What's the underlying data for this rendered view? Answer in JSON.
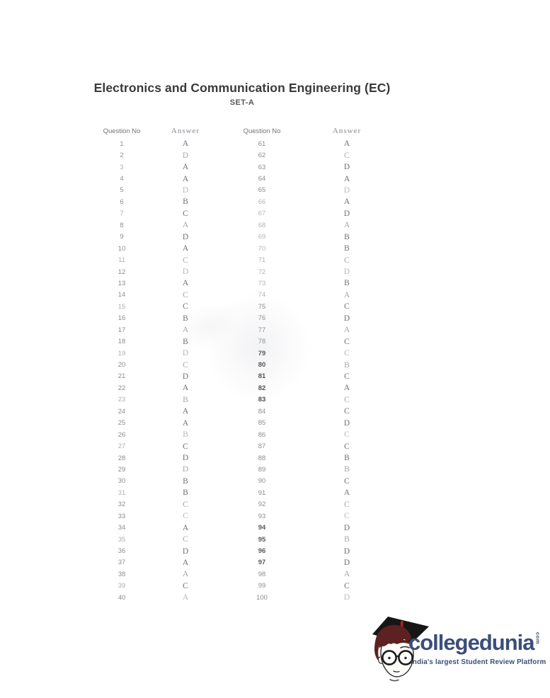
{
  "page": {
    "title": "Electronics and Communication Engineering (EC)",
    "set_label": "SET-A"
  },
  "table": {
    "headers": [
      "Question No",
      "Answer",
      "Question No",
      "Answer"
    ],
    "rows": [
      {
        "q1": "1",
        "a1": "A",
        "q2": "61",
        "a2": "A"
      },
      {
        "q1": "2",
        "a1": "D",
        "q2": "62",
        "a2": "C"
      },
      {
        "q1": "3",
        "a1": "A",
        "q2": "63",
        "a2": "D"
      },
      {
        "q1": "4",
        "a1": "A",
        "q2": "64",
        "a2": "A"
      },
      {
        "q1": "5",
        "a1": "D",
        "q2": "65",
        "a2": "D"
      },
      {
        "q1": "6",
        "a1": "B",
        "q2": "66",
        "a2": "A"
      },
      {
        "q1": "7",
        "a1": "C",
        "q2": "67",
        "a2": "D"
      },
      {
        "q1": "8",
        "a1": "A",
        "q2": "68",
        "a2": "A"
      },
      {
        "q1": "9",
        "a1": "D",
        "q2": "69",
        "a2": "B"
      },
      {
        "q1": "10",
        "a1": "A",
        "q2": "70",
        "a2": "B"
      },
      {
        "q1": "11",
        "a1": "C",
        "q2": "71",
        "a2": "C"
      },
      {
        "q1": "12",
        "a1": "D",
        "q2": "72",
        "a2": "D"
      },
      {
        "q1": "13",
        "a1": "A",
        "q2": "73",
        "a2": "B"
      },
      {
        "q1": "14",
        "a1": "C",
        "q2": "74",
        "a2": "A"
      },
      {
        "q1": "15",
        "a1": "C",
        "q2": "75",
        "a2": "C"
      },
      {
        "q1": "16",
        "a1": "B",
        "q2": "76",
        "a2": "D"
      },
      {
        "q1": "17",
        "a1": "A",
        "q2": "77",
        "a2": "A"
      },
      {
        "q1": "18",
        "a1": "B",
        "q2": "78",
        "a2": "C"
      },
      {
        "q1": "19",
        "a1": "D",
        "q2": "79",
        "a2": "C"
      },
      {
        "q1": "20",
        "a1": "C",
        "q2": "80",
        "a2": "B"
      },
      {
        "q1": "21",
        "a1": "D",
        "q2": "81",
        "a2": "C"
      },
      {
        "q1": "22",
        "a1": "A",
        "q2": "82",
        "a2": "A"
      },
      {
        "q1": "23",
        "a1": "B",
        "q2": "83",
        "a2": "C"
      },
      {
        "q1": "24",
        "a1": "A",
        "q2": "84",
        "a2": "C"
      },
      {
        "q1": "25",
        "a1": "A",
        "q2": "85",
        "a2": "D"
      },
      {
        "q1": "26",
        "a1": "B",
        "q2": "86",
        "a2": "C"
      },
      {
        "q1": "27",
        "a1": "C",
        "q2": "87",
        "a2": "C"
      },
      {
        "q1": "28",
        "a1": "D",
        "q2": "88",
        "a2": "B"
      },
      {
        "q1": "29",
        "a1": "D",
        "q2": "89",
        "a2": "B"
      },
      {
        "q1": "30",
        "a1": "B",
        "q2": "90",
        "a2": "C"
      },
      {
        "q1": "31",
        "a1": "B",
        "q2": "91",
        "a2": "A"
      },
      {
        "q1": "32",
        "a1": "C",
        "q2": "92",
        "a2": "C"
      },
      {
        "q1": "33",
        "a1": "C",
        "q2": "93",
        "a2": "C"
      },
      {
        "q1": "34",
        "a1": "A",
        "q2": "94",
        "a2": "D"
      },
      {
        "q1": "35",
        "a1": "C",
        "q2": "95",
        "a2": "B"
      },
      {
        "q1": "36",
        "a1": "D",
        "q2": "96",
        "a2": "D"
      },
      {
        "q1": "37",
        "a1": "A",
        "q2": "97",
        "a2": "D"
      },
      {
        "q1": "38",
        "a1": "A",
        "q2": "98",
        "a2": "A"
      },
      {
        "q1": "39",
        "a1": "C",
        "q2": "99",
        "a2": "C"
      },
      {
        "q1": "40",
        "a1": "A",
        "q2": "100",
        "a2": "D"
      }
    ]
  },
  "footer": {
    "brand": "collegedunia",
    "brand_suffix": "com",
    "tagline": "India's largest Student Review Platform",
    "brand_color": "#3b4e7a",
    "tassel_color": "#b32020",
    "hair_color": "#5d2121"
  }
}
